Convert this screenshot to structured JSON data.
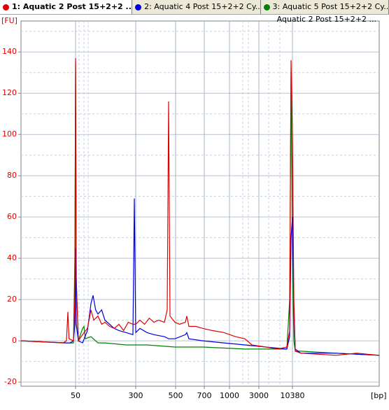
{
  "tabs": [
    {
      "label": "1: Aquatic 2 Post 15+2+2 ...",
      "color": "#e00000"
    },
    {
      "label": "2: Aquatic 4 Post 15+2+2 Cy...",
      "color": "#0000e0"
    },
    {
      "label": "3: Aquatic 5 Post 15+2+2 Cy...",
      "color": "#008000"
    }
  ],
  "chart_data": {
    "type": "line",
    "subtitle": "Aquatic 2 Post 15+2+2 ...",
    "y_label": "[FU]",
    "x_label": "[bp]",
    "xlim": [
      40,
      116.8
    ],
    "ylim": [
      -22,
      155
    ],
    "yticks": [
      -20,
      0,
      20,
      40,
      60,
      80,
      100,
      120,
      140
    ],
    "minor_yticks": [
      -10,
      10,
      30,
      50,
      70,
      90,
      110,
      130,
      150
    ],
    "xticks": [
      {
        "value": 51.7,
        "label": "50"
      },
      {
        "value": 64.6,
        "label": "300"
      },
      {
        "value": 73.15,
        "label": "500"
      },
      {
        "value": 79.3,
        "label": "700"
      },
      {
        "value": 84.7,
        "label": "1000"
      },
      {
        "value": 91,
        "label": "3000"
      },
      {
        "value": 98.2,
        "label": "10380"
      }
    ],
    "minor_xticks": [
      52.45,
      53.5,
      54.4,
      87.55,
      88.75,
      93.1,
      95.5
    ],
    "grid": true,
    "series": [
      {
        "name": "1: Aquatic 2 Post 15+2+2 ...",
        "color": "#e00000",
        "x": [
          40,
          49,
          49.75,
          50.05,
          50.3,
          51.25,
          51.55,
          51.7,
          51.85,
          52.3,
          53.2,
          54.25,
          55,
          55.6,
          56.5,
          57.3,
          58,
          59,
          60,
          61,
          62,
          63,
          64,
          64.6,
          65.5,
          66.5,
          67.5,
          68.5,
          69.5,
          70.75,
          71.35,
          71.65,
          71.95,
          73,
          74,
          75.25,
          75.55,
          76,
          77.5,
          79,
          81,
          83.5,
          86,
          88,
          89.5,
          92.5,
          95,
          97,
          97.6,
          97.9,
          98.2,
          98.5,
          98.8,
          100,
          107.5,
          112,
          116.8
        ],
        "values": [
          0,
          -1,
          0,
          14,
          1,
          0,
          20,
          137,
          30,
          0,
          3,
          6,
          15,
          10,
          12,
          8,
          9,
          7,
          6,
          8,
          5,
          9,
          8,
          8,
          10,
          8,
          11,
          9,
          10,
          9,
          15,
          116,
          12,
          9,
          8,
          9,
          12,
          7,
          7,
          6,
          5,
          4,
          2,
          1,
          -2,
          -3,
          -4,
          -3,
          5,
          136,
          100,
          20,
          -5,
          -6,
          -7,
          -6,
          -7
        ]
      },
      {
        "name": "2: Aquatic 4 Post 15+2+2 Cy...",
        "color": "#0000e0",
        "x": [
          40,
          49.75,
          50.5,
          51.25,
          51.55,
          51.7,
          51.85,
          52.3,
          53.2,
          54.25,
          55,
          55.45,
          56,
          56.5,
          57.3,
          58,
          59,
          60,
          61,
          62.5,
          64,
          64.3,
          64.6,
          65.5,
          67,
          68.5,
          70.75,
          71.65,
          73,
          75.25,
          75.55,
          76,
          79,
          83.5,
          88,
          92.5,
          97,
          97.6,
          97.9,
          98.2,
          98.5,
          98.8,
          100,
          107.5,
          116.8
        ],
        "values": [
          0,
          -1,
          -1,
          0,
          8,
          45,
          8,
          0,
          -1,
          5,
          18,
          22,
          15,
          13,
          15,
          10,
          8,
          6,
          5,
          4,
          3,
          69,
          4,
          6,
          4,
          3,
          2,
          1,
          1,
          3,
          4,
          1,
          0,
          -1,
          -2,
          -3,
          -4,
          2,
          50,
          60,
          15,
          -4,
          -6,
          -6,
          -7
        ]
      },
      {
        "name": "3: Aquatic 5 Post 15+2+2 Cy...",
        "color": "#008000",
        "x": [
          40,
          49.75,
          51.25,
          51.55,
          51.7,
          51.85,
          52.3,
          53.2,
          53.5,
          53.8,
          55,
          56.5,
          58,
          62.5,
          67,
          73,
          79,
          88,
          92.5,
          97,
          97.6,
          97.9,
          98.2,
          98.5,
          98.8,
          100,
          107.5,
          116.8
        ],
        "values": [
          0,
          -1,
          -1,
          40,
          135,
          30,
          0,
          6,
          7,
          1,
          2,
          -1,
          -1,
          -2,
          -2,
          -3,
          -3,
          -4,
          -4,
          -4,
          20,
          130,
          40,
          0,
          -5,
          -5,
          -6,
          -7
        ]
      }
    ]
  }
}
